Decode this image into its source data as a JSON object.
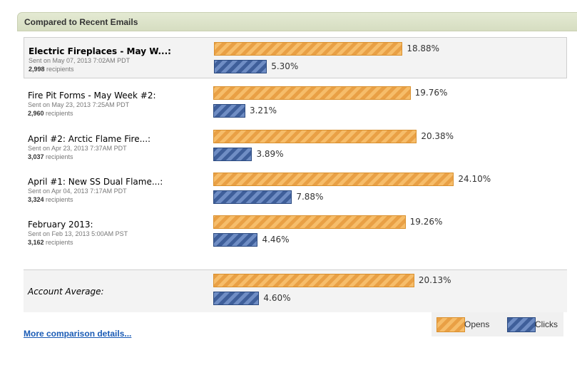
{
  "panel": {
    "title": "Compared to Recent Emails"
  },
  "chart_data": {
    "type": "bar",
    "orientation": "horizontal",
    "series_names": [
      "Opens",
      "Clicks"
    ],
    "emails": [
      {
        "name": "Electric Fireplaces - May W...:",
        "sent": "Sent on May 07, 2013 7:02AM PDT",
        "recipients": "2,998",
        "recipients_label": " recipients",
        "opens": 18.88,
        "clicks": 5.3,
        "opens_label": "18.88%",
        "clicks_label": "5.30%",
        "highlight": true
      },
      {
        "name": "Fire Pit Forms - May Week #2:",
        "sent": "Sent on May 23, 2013 7:25AM PDT",
        "recipients": "2,960",
        "recipients_label": " recipients",
        "opens": 19.76,
        "clicks": 3.21,
        "opens_label": "19.76%",
        "clicks_label": "3.21%"
      },
      {
        "name": "April #2: Arctic Flame Fire...:",
        "sent": "Sent on Apr 23, 2013 7:37AM PDT",
        "recipients": "3,037",
        "recipients_label": " recipients",
        "opens": 20.38,
        "clicks": 3.89,
        "opens_label": "20.38%",
        "clicks_label": "3.89%"
      },
      {
        "name": "April #1: New SS Dual Flame...:",
        "sent": "Sent on Apr 04, 2013 7:17AM PDT",
        "recipients": "3,324",
        "recipients_label": " recipients",
        "opens": 24.1,
        "clicks": 7.88,
        "opens_label": "24.10%",
        "clicks_label": "7.88%"
      },
      {
        "name": "February 2013:",
        "sent": "Sent on Feb 13, 2013 5:00AM PST",
        "recipients": "3,162",
        "recipients_label": " recipients",
        "opens": 19.26,
        "clicks": 4.46,
        "opens_label": "19.26%",
        "clicks_label": "4.46%"
      }
    ],
    "average": {
      "name": "Account Average:",
      "opens": 20.13,
      "clicks": 4.6,
      "opens_label": "20.13%",
      "clicks_label": "4.60%"
    }
  },
  "legend": {
    "opens": "Opens",
    "clicks": "Clicks"
  },
  "colors": {
    "opens": "#f0a94c",
    "clicks": "#4a6aa5",
    "header_bg": "#dde3c9",
    "link": "#1a5bb5"
  },
  "link": {
    "label": "More comparison details..."
  }
}
